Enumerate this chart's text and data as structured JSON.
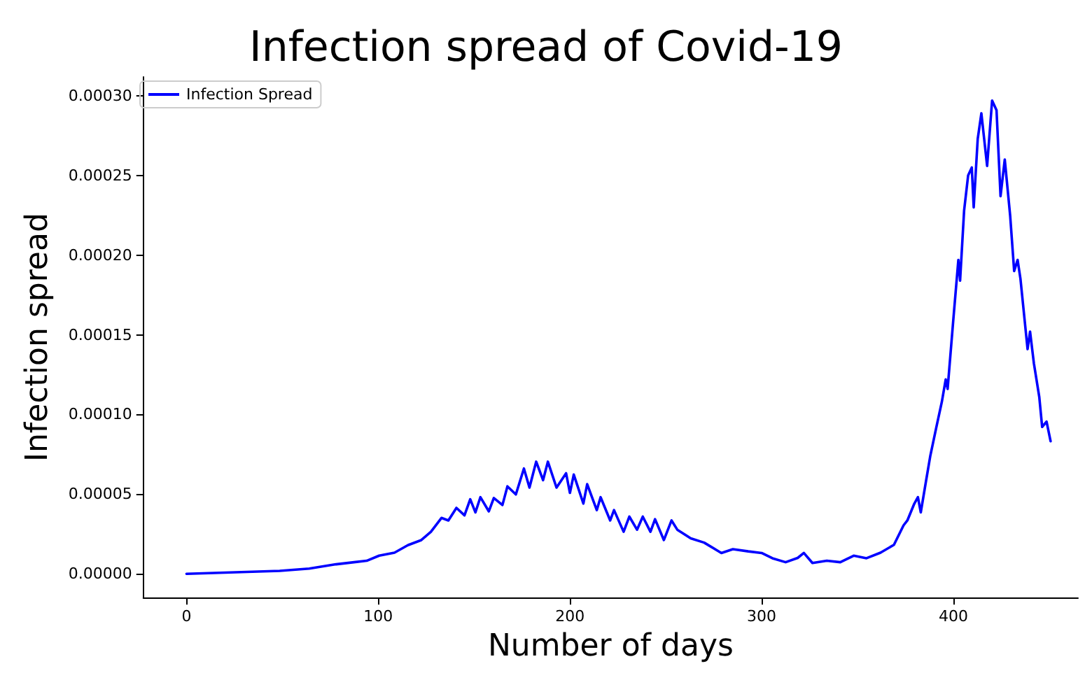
{
  "chart_data": {
    "type": "line",
    "title": "Infection spread of Covid-19",
    "xlabel": "Number of days",
    "ylabel": "Infection spread",
    "x": [
      0,
      48.6,
      64,
      78,
      94,
      100.5,
      108.5,
      115.5,
      122.5,
      127.5,
      133,
      136.6,
      140.8,
      145,
      148,
      150.7,
      153.3,
      157.7,
      160.3,
      164.8,
      167.4,
      171.8,
      176,
      178.9,
      182.4,
      186,
      188.5,
      193,
      198,
      200,
      202,
      207,
      209,
      214,
      216,
      221,
      223,
      228,
      231,
      235,
      238,
      242,
      244.4,
      249,
      253,
      256,
      263,
      270,
      279,
      285,
      293,
      300,
      305.6,
      312.5,
      318.8,
      322,
      326.5,
      334,
      341,
      348,
      354.7,
      362,
      369,
      374,
      376,
      379.6,
      381.5,
      383,
      385.7,
      388,
      391,
      394,
      396,
      397,
      400,
      402.6,
      403.5,
      405.6,
      407.7,
      409.6,
      410.6,
      412.7,
      414.6,
      417.6,
      420.2,
      422.5,
      424.6,
      426.8,
      429.6,
      431.7,
      433.5,
      435,
      438.7,
      440,
      442,
      444.8,
      446.3,
      448.6,
      450.7
    ],
    "series": [
      {
        "name": "Infection Spread",
        "color": "#0000ff",
        "values": [
          0,
          1.9e-06,
          3.3e-06,
          6e-06,
          8.2e-06,
          1.14e-05,
          1.33e-05,
          1.8e-05,
          2.12e-05,
          2.64e-05,
          3.51e-05,
          3.35e-05,
          4.14e-05,
          3.67e-05,
          4.68e-05,
          3.86e-05,
          4.81e-05,
          3.92e-05,
          4.76e-05,
          4.32e-05,
          5.49e-05,
          4.98e-05,
          6.61e-05,
          5.41e-05,
          7.04e-05,
          5.88e-05,
          7.04e-05,
          5.41e-05,
          6.31e-05,
          5.08e-05,
          6.23e-05,
          4.41e-05,
          5.63e-05,
          4e-05,
          4.81e-05,
          3.35e-05,
          4e-05,
          2.64e-05,
          3.59e-05,
          2.77e-05,
          3.59e-05,
          2.64e-05,
          3.43e-05,
          2.12e-05,
          3.35e-05,
          2.77e-05,
          2.23e-05,
          1.96e-05,
          1.31e-05,
          1.55e-05,
          1.41e-05,
          1.31e-05,
          9.8e-06,
          7.3e-06,
          1e-05,
          1.31e-05,
          6.8e-06,
          8.2e-06,
          7.3e-06,
          1.14e-05,
          9.8e-06,
          1.33e-05,
          1.82e-05,
          3.04e-05,
          3.35e-05,
          4.4e-05,
          4.81e-05,
          3.86e-05,
          5.8e-05,
          7.43e-05,
          9.14e-05,
          0.000108,
          0.000122,
          0.000116,
          0.00016,
          0.000197,
          0.000184,
          0.000228,
          0.00025,
          0.000255,
          0.00023,
          0.000273,
          0.000289,
          0.000256,
          0.000297,
          0.000291,
          0.000237,
          0.00026,
          0.000225,
          0.00019,
          0.000197,
          0.000185,
          0.000141,
          0.000152,
          0.000132,
          0.000111,
          9.22e-05,
          9.55e-05,
          8.32e-05
        ]
      }
    ],
    "xlim": [
      -22.5,
      465
    ],
    "xticks": [
      0,
      100,
      200,
      300,
      400
    ],
    "ylim": [
      -1.49e-05,
      0.0003118
    ],
    "yticks": [
      {
        "value": 0,
        "label": "0.00000"
      },
      {
        "value": 5e-05,
        "label": "0.00005"
      },
      {
        "value": 0.0001,
        "label": "0.00010"
      },
      {
        "value": 0.00015,
        "label": "0.00015"
      },
      {
        "value": 0.0002,
        "label": "0.00020"
      },
      {
        "value": 0.00025,
        "label": "0.00025"
      },
      {
        "value": 0.0003,
        "label": "0.00030"
      }
    ],
    "grid": false,
    "legend": "top left",
    "marker": "none",
    "line_style": "solid"
  }
}
